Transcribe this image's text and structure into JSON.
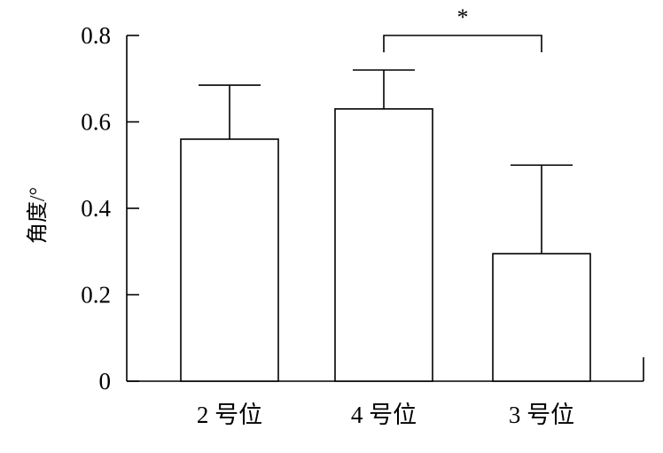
{
  "chart_data": {
    "type": "bar",
    "categories": [
      "2 号位",
      "4 号位",
      "3 号位"
    ],
    "values": [
      0.56,
      0.63,
      0.295
    ],
    "error_upper": [
      0.685,
      0.72,
      0.5
    ],
    "ylabel": "角度/°",
    "xlabel": "",
    "title": "",
    "ylim": [
      0,
      0.8
    ],
    "yticks": [
      {
        "value": 0,
        "label": "0"
      },
      {
        "value": 0.2,
        "label": "0.2"
      },
      {
        "value": 0.4,
        "label": "0.4"
      },
      {
        "value": 0.6,
        "label": "0.6"
      },
      {
        "value": 0.8,
        "label": "0.8"
      }
    ],
    "significance": {
      "from": "4 号位",
      "to": "3 号位",
      "label": "*"
    },
    "grid": false,
    "bar_fill": "#ffffff",
    "stroke_color": "#000000"
  }
}
